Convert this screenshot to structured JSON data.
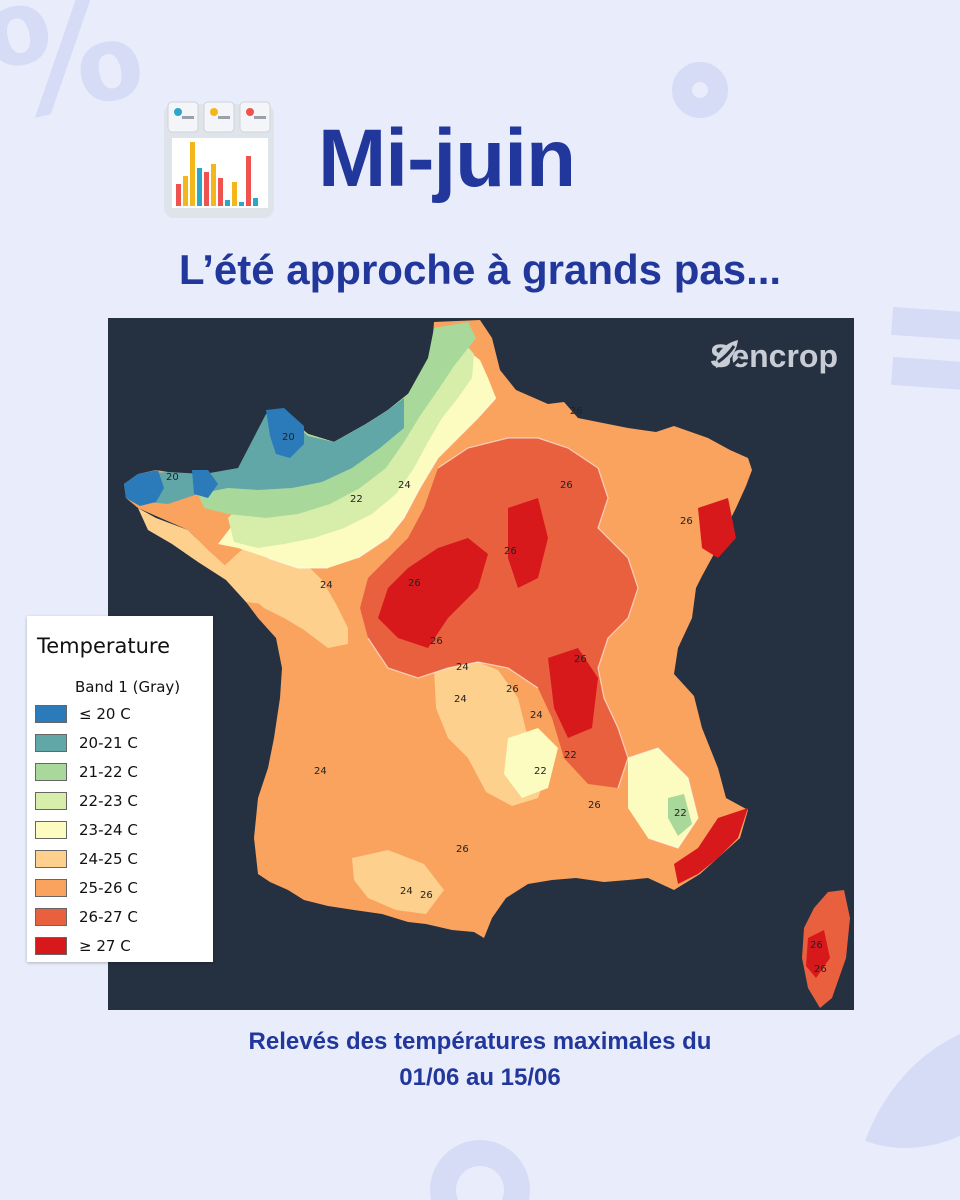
{
  "header": {
    "title": "Mi-juin",
    "subtitle": "L’été approche à grands pas...",
    "icon": "bar-chart-dashboard-icon"
  },
  "map": {
    "brand": "Sencrop",
    "brand_icon": "leaf-logo-icon",
    "isotherm_labels": [
      "20",
      "20",
      "22",
      "24",
      "24",
      "26",
      "26",
      "26",
      "26",
      "26",
      "24",
      "24",
      "24",
      "26",
      "22",
      "22",
      "22",
      "24",
      "26",
      "26",
      "26",
      "24",
      "26",
      "26",
      "26",
      "26"
    ],
    "colors": {
      "background": "#253040",
      "le20": "#2b7bba",
      "c20_21": "#62a7a7",
      "c21_22": "#a9d99a",
      "c22_23": "#d6eeaa",
      "c23_24": "#fcfcc0",
      "c24_25": "#fdd08e",
      "c25_26": "#f9a35e",
      "c26_27": "#e9603f",
      "ge27": "#d7191c"
    }
  },
  "legend": {
    "title": "Temperature",
    "band": "Band 1 (Gray)",
    "items": [
      {
        "label": "≤ 20 C",
        "color": "#2b7bba"
      },
      {
        "label": "20-21 C",
        "color": "#62a7a7"
      },
      {
        "label": "21-22 C",
        "color": "#a9d99a"
      },
      {
        "label": "22-23 C",
        "color": "#d6eeaa"
      },
      {
        "label": "23-24 C",
        "color": "#fcfcc0"
      },
      {
        "label": "24-25 C",
        "color": "#fdd08e"
      },
      {
        "label": "25-26 C",
        "color": "#f9a35e"
      },
      {
        "label": "26-27 C",
        "color": "#e9603f"
      },
      {
        "label": "≥ 27 C",
        "color": "#d7191c"
      }
    ]
  },
  "caption": {
    "line1": "Relevés des températures maximales du",
    "line2": "01/06 au 15/06"
  },
  "colors": {
    "accent": "#21379b",
    "page_background": "#e9edfb"
  }
}
